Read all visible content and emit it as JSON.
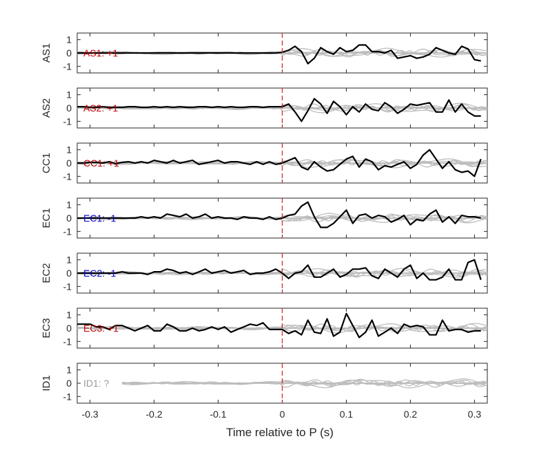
{
  "chart_data": {
    "type": "line",
    "xlabel": "Time relative to P (s)",
    "xlim": [
      -0.32,
      0.32
    ],
    "ylim": [
      -1.5,
      1.5
    ],
    "x_ticks": [
      -0.3,
      -0.2,
      -0.1,
      0,
      0.1,
      0.2,
      0.3
    ],
    "x_tick_labels": [
      "-0.3",
      "-0.2",
      "-0.1",
      "0",
      "0.1",
      "0.2",
      "0.3"
    ],
    "y_ticks": [
      -1,
      0,
      1
    ],
    "y_tick_labels": [
      "-1",
      "0",
      "1"
    ],
    "p_marker": {
      "x": 0,
      "color": "#d62728",
      "style": "dashed"
    },
    "colors": {
      "main_trace": "#000000",
      "other_traces": "#bdbdbd",
      "positive": "#c00000",
      "negative": "#0000c8",
      "unknown": "#9a9a9a",
      "axis": "#262626"
    },
    "x": [
      -0.32,
      -0.31,
      -0.3,
      -0.29,
      -0.28,
      -0.27,
      -0.26,
      -0.25,
      -0.24,
      -0.23,
      -0.22,
      -0.21,
      -0.2,
      -0.19,
      -0.18,
      -0.17,
      -0.16,
      -0.15,
      -0.14,
      -0.13,
      -0.12,
      -0.11,
      -0.1,
      -0.09,
      -0.08,
      -0.07,
      -0.06,
      -0.05,
      -0.04,
      -0.03,
      -0.02,
      -0.01,
      0,
      0.01,
      0.02,
      0.03,
      0.04,
      0.05,
      0.06,
      0.07,
      0.08,
      0.09,
      0.1,
      0.11,
      0.12,
      0.13,
      0.14,
      0.15,
      0.16,
      0.17,
      0.18,
      0.19,
      0.2,
      0.21,
      0.22,
      0.23,
      0.24,
      0.25,
      0.26,
      0.27,
      0.28,
      0.29,
      0.3,
      0.31
    ],
    "panels": [
      {
        "ylabel": "AS1",
        "label": "AS1: +1",
        "polarity": "positive",
        "values": [
          0,
          0,
          0,
          0,
          0,
          0,
          0,
          0,
          0,
          0,
          0,
          0,
          0,
          0,
          0,
          0,
          0,
          0,
          0,
          0,
          0,
          0,
          0,
          0,
          0,
          0,
          0,
          0,
          0,
          0,
          0,
          0,
          0.05,
          0.2,
          0.5,
          0.1,
          -0.8,
          -0.4,
          0.4,
          0.1,
          -0.1,
          0.4,
          0.1,
          0.2,
          0.6,
          0.6,
          0.1,
          0.1,
          0,
          0.2,
          -0.4,
          -0.3,
          -0.2,
          -0.4,
          -0.3,
          -0.1,
          0.4,
          0.2,
          0,
          -0.1,
          0.5,
          0.3,
          -0.5,
          -0.6
        ]
      },
      {
        "ylabel": "AS2",
        "label": "AS2: +1",
        "polarity": "positive",
        "values": [
          0.1,
          0.1,
          0.05,
          0.05,
          0.1,
          0.05,
          0.05,
          0.05,
          0.1,
          0.1,
          0.05,
          0.05,
          0.1,
          0.05,
          0.1,
          0.05,
          0.1,
          0.05,
          0.05,
          0.1,
          0.1,
          0.05,
          0.1,
          0.05,
          0.1,
          0.05,
          0.05,
          0.1,
          0.1,
          0.05,
          0.1,
          0.1,
          0.1,
          0.3,
          -0.3,
          -1,
          -0.2,
          0.7,
          0.3,
          -0.4,
          0.5,
          0.1,
          -0.5,
          0.1,
          -0.3,
          0.3,
          -0.1,
          -0.2,
          0.4,
          0.1,
          -0.4,
          -0.1,
          0.3,
          0.2,
          0.3,
          0.4,
          -0.3,
          -0.3,
          0.6,
          -0.3,
          0.3,
          -0.3,
          -0.6,
          -0.6
        ]
      },
      {
        "ylabel": "CC1",
        "label": "CC1: +1",
        "polarity": "positive",
        "values": [
          0,
          0,
          0.05,
          0.05,
          0,
          0.1,
          -0.05,
          0.05,
          0.1,
          0,
          0.1,
          0,
          0.2,
          0.1,
          0,
          0.2,
          0,
          0.1,
          0.2,
          -0.1,
          0,
          0.1,
          0.2,
          0,
          0.1,
          0.1,
          0,
          -0.1,
          0.1,
          -0.1,
          0.1,
          -0.1,
          0,
          0.2,
          0.4,
          -0.3,
          -0.5,
          0.1,
          -0.3,
          -0.6,
          -0.5,
          -0.1,
          0.3,
          0.5,
          -0.3,
          0.3,
          0.1,
          -0.5,
          -0.2,
          -0.3,
          -0.1,
          0.1,
          -0.4,
          -0.1,
          0.6,
          1,
          0.3,
          -0.4,
          0.1,
          -0.5,
          -0.7,
          -0.6,
          -1,
          0.3
        ]
      },
      {
        "ylabel": "EC1",
        "label": "EC1: -1",
        "polarity": "negative",
        "values": [
          0,
          0,
          0,
          0,
          0,
          0,
          0,
          0,
          0,
          0,
          0.1,
          0,
          0.1,
          0,
          0.3,
          0.2,
          0.1,
          0.3,
          0,
          0.1,
          0.3,
          0,
          0.1,
          0,
          0,
          -0.1,
          0.1,
          0,
          0,
          -0.1,
          0.1,
          -0.1,
          0,
          0.2,
          0.3,
          0.9,
          1.2,
          0.1,
          -0.7,
          -0.7,
          -0.4,
          0.1,
          0.6,
          -0.4,
          0.2,
          0.3,
          0,
          0.2,
          0.1,
          -0.3,
          -0.1,
          0.2,
          -0.5,
          -0.1,
          -0.2,
          0.3,
          0.6,
          -0.3,
          0.1,
          -0.4,
          0.2,
          0.1,
          0.1,
          0
        ]
      },
      {
        "ylabel": "EC2",
        "label": "EC2: -1",
        "polarity": "negative",
        "values": [
          0,
          0,
          0,
          0,
          0,
          0,
          0,
          0.1,
          0,
          0,
          0,
          -0.1,
          0.1,
          0.1,
          0.3,
          0.2,
          0,
          0.1,
          -0.1,
          0.1,
          0.3,
          0,
          0.1,
          0.2,
          0,
          0.1,
          0.2,
          -0.1,
          0,
          0,
          0.1,
          0.3,
          0,
          -0.4,
          0,
          0.1,
          0.6,
          -0.3,
          -0.3,
          0,
          0.3,
          -0.3,
          -0.1,
          0.3,
          0.3,
          0.4,
          -0.2,
          -0.4,
          0.3,
          0,
          -0.3,
          0.3,
          0.6,
          -0.4,
          0,
          -0.5,
          -0.5,
          -0.3,
          0.3,
          -0.5,
          -0.5,
          0.8,
          1,
          -0.5
        ]
      },
      {
        "ylabel": "EC3",
        "label": "EC3: +1",
        "polarity": "positive",
        "values": [
          0.3,
          0.3,
          0.3,
          0.1,
          0.1,
          -0.1,
          0.2,
          0.2,
          0,
          -0.2,
          0,
          0.2,
          -0.2,
          -0.2,
          0.3,
          0.1,
          -0.2,
          -0.2,
          0,
          -0.2,
          -0.1,
          0.1,
          -0.1,
          0.1,
          -0.3,
          -0.1,
          0.1,
          0.3,
          0.2,
          0.4,
          -0.1,
          -0.1,
          -0.1,
          -0.4,
          -0.2,
          -0.5,
          0.6,
          -0.3,
          -0.4,
          0.7,
          -0.6,
          -0.3,
          1.1,
          0.2,
          -0.7,
          -0.3,
          0.6,
          -0.6,
          -0.3,
          0,
          -0.4,
          0.3,
          0.1,
          0.2,
          0.1,
          -0.5,
          -0.5,
          0.6,
          -0.2,
          -0.1,
          -0.1,
          -0.3,
          -0.2,
          -0.2
        ]
      },
      {
        "ylabel": "ID1",
        "label": "ID1: ?",
        "polarity": "unknown",
        "values": []
      }
    ]
  }
}
